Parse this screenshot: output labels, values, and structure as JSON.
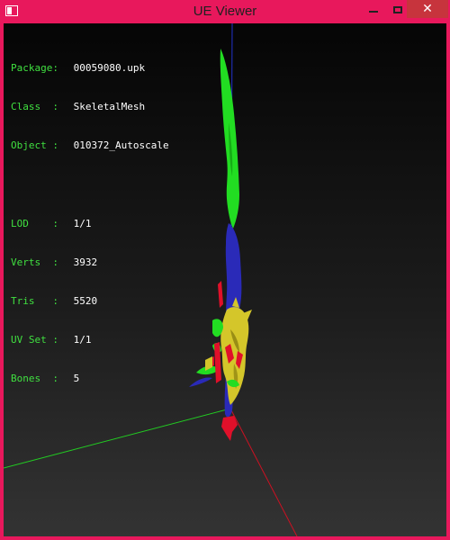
{
  "window": {
    "title": "UE Viewer",
    "close_glyph": "✕"
  },
  "info": {
    "package_label": "Package:",
    "package_value": "00059080.upk",
    "class_label": "Class  :",
    "class_value": "SkeletalMesh",
    "object_label": "Object :",
    "object_value": "010372_Autoscale",
    "lod_label": "LOD    :",
    "lod_value": "1/1",
    "verts_label": "Verts  :",
    "verts_value": "3932",
    "tris_label": "Tris   :",
    "tris_value": "5520",
    "uvset_label": "UV Set :",
    "uvset_value": "1/1",
    "bones_label": "Bones  :",
    "bones_value": "5"
  },
  "colors": {
    "frame": "#e8185c",
    "label_text": "#40e040",
    "value_text": "#ffffff",
    "mesh_green": "#22dd22",
    "mesh_blue": "#2a2ab8",
    "mesh_yellow": "#d4c62a",
    "mesh_red": "#e0102a"
  }
}
